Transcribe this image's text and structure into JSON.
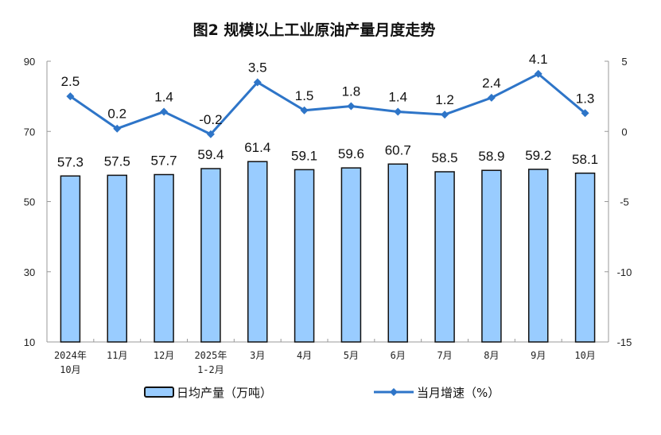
{
  "chart_data": {
    "type": "bar+line",
    "title": "图2  规模以上工业原油产量月度走势",
    "categories": [
      [
        "2024年",
        "10月"
      ],
      [
        "11月"
      ],
      [
        "12月"
      ],
      [
        "2025年",
        "1-2月"
      ],
      [
        "3月"
      ],
      [
        "4月"
      ],
      [
        "5月"
      ],
      [
        "6月"
      ],
      [
        "7月"
      ],
      [
        "8月"
      ],
      [
        "9月"
      ],
      [
        "10月"
      ]
    ],
    "series": [
      {
        "name": "日均产量（万吨）",
        "type": "bar",
        "axis": "left",
        "color": "#99ccff",
        "values": [
          57.3,
          57.5,
          57.7,
          59.4,
          61.4,
          59.1,
          59.6,
          60.7,
          58.5,
          58.9,
          59.2,
          58.1
        ],
        "labels": [
          "57.3",
          "57.5",
          "57.7",
          "59.4",
          "61.4",
          "59.1",
          "59.6",
          "60.7",
          "58.5",
          "58.9",
          "59.2",
          "58.1"
        ]
      },
      {
        "name": "当月增速（%）",
        "type": "line",
        "axis": "right",
        "color": "#2e75c8",
        "values": [
          2.5,
          0.2,
          1.4,
          -0.2,
          3.5,
          1.5,
          1.8,
          1.4,
          1.2,
          2.4,
          4.1,
          1.3
        ],
        "labels": [
          "2.5",
          "0.2",
          "1.4",
          "-0.2",
          "3.5",
          "1.5",
          "1.8",
          "1.4",
          "1.2",
          "2.4",
          "4.1",
          "1.3"
        ]
      }
    ],
    "left_axis": {
      "range": [
        10,
        90
      ],
      "ticks": [
        "10",
        "30",
        "50",
        "70",
        "90"
      ],
      "values": [
        10,
        30,
        50,
        70,
        90
      ]
    },
    "right_axis": {
      "range": [
        -15,
        5
      ],
      "ticks": [
        "-15",
        "-10",
        "-5",
        "0",
        "5"
      ],
      "values": [
        -15,
        -10,
        -5,
        0,
        5
      ]
    },
    "legend_position": "bottom",
    "grid": false
  }
}
